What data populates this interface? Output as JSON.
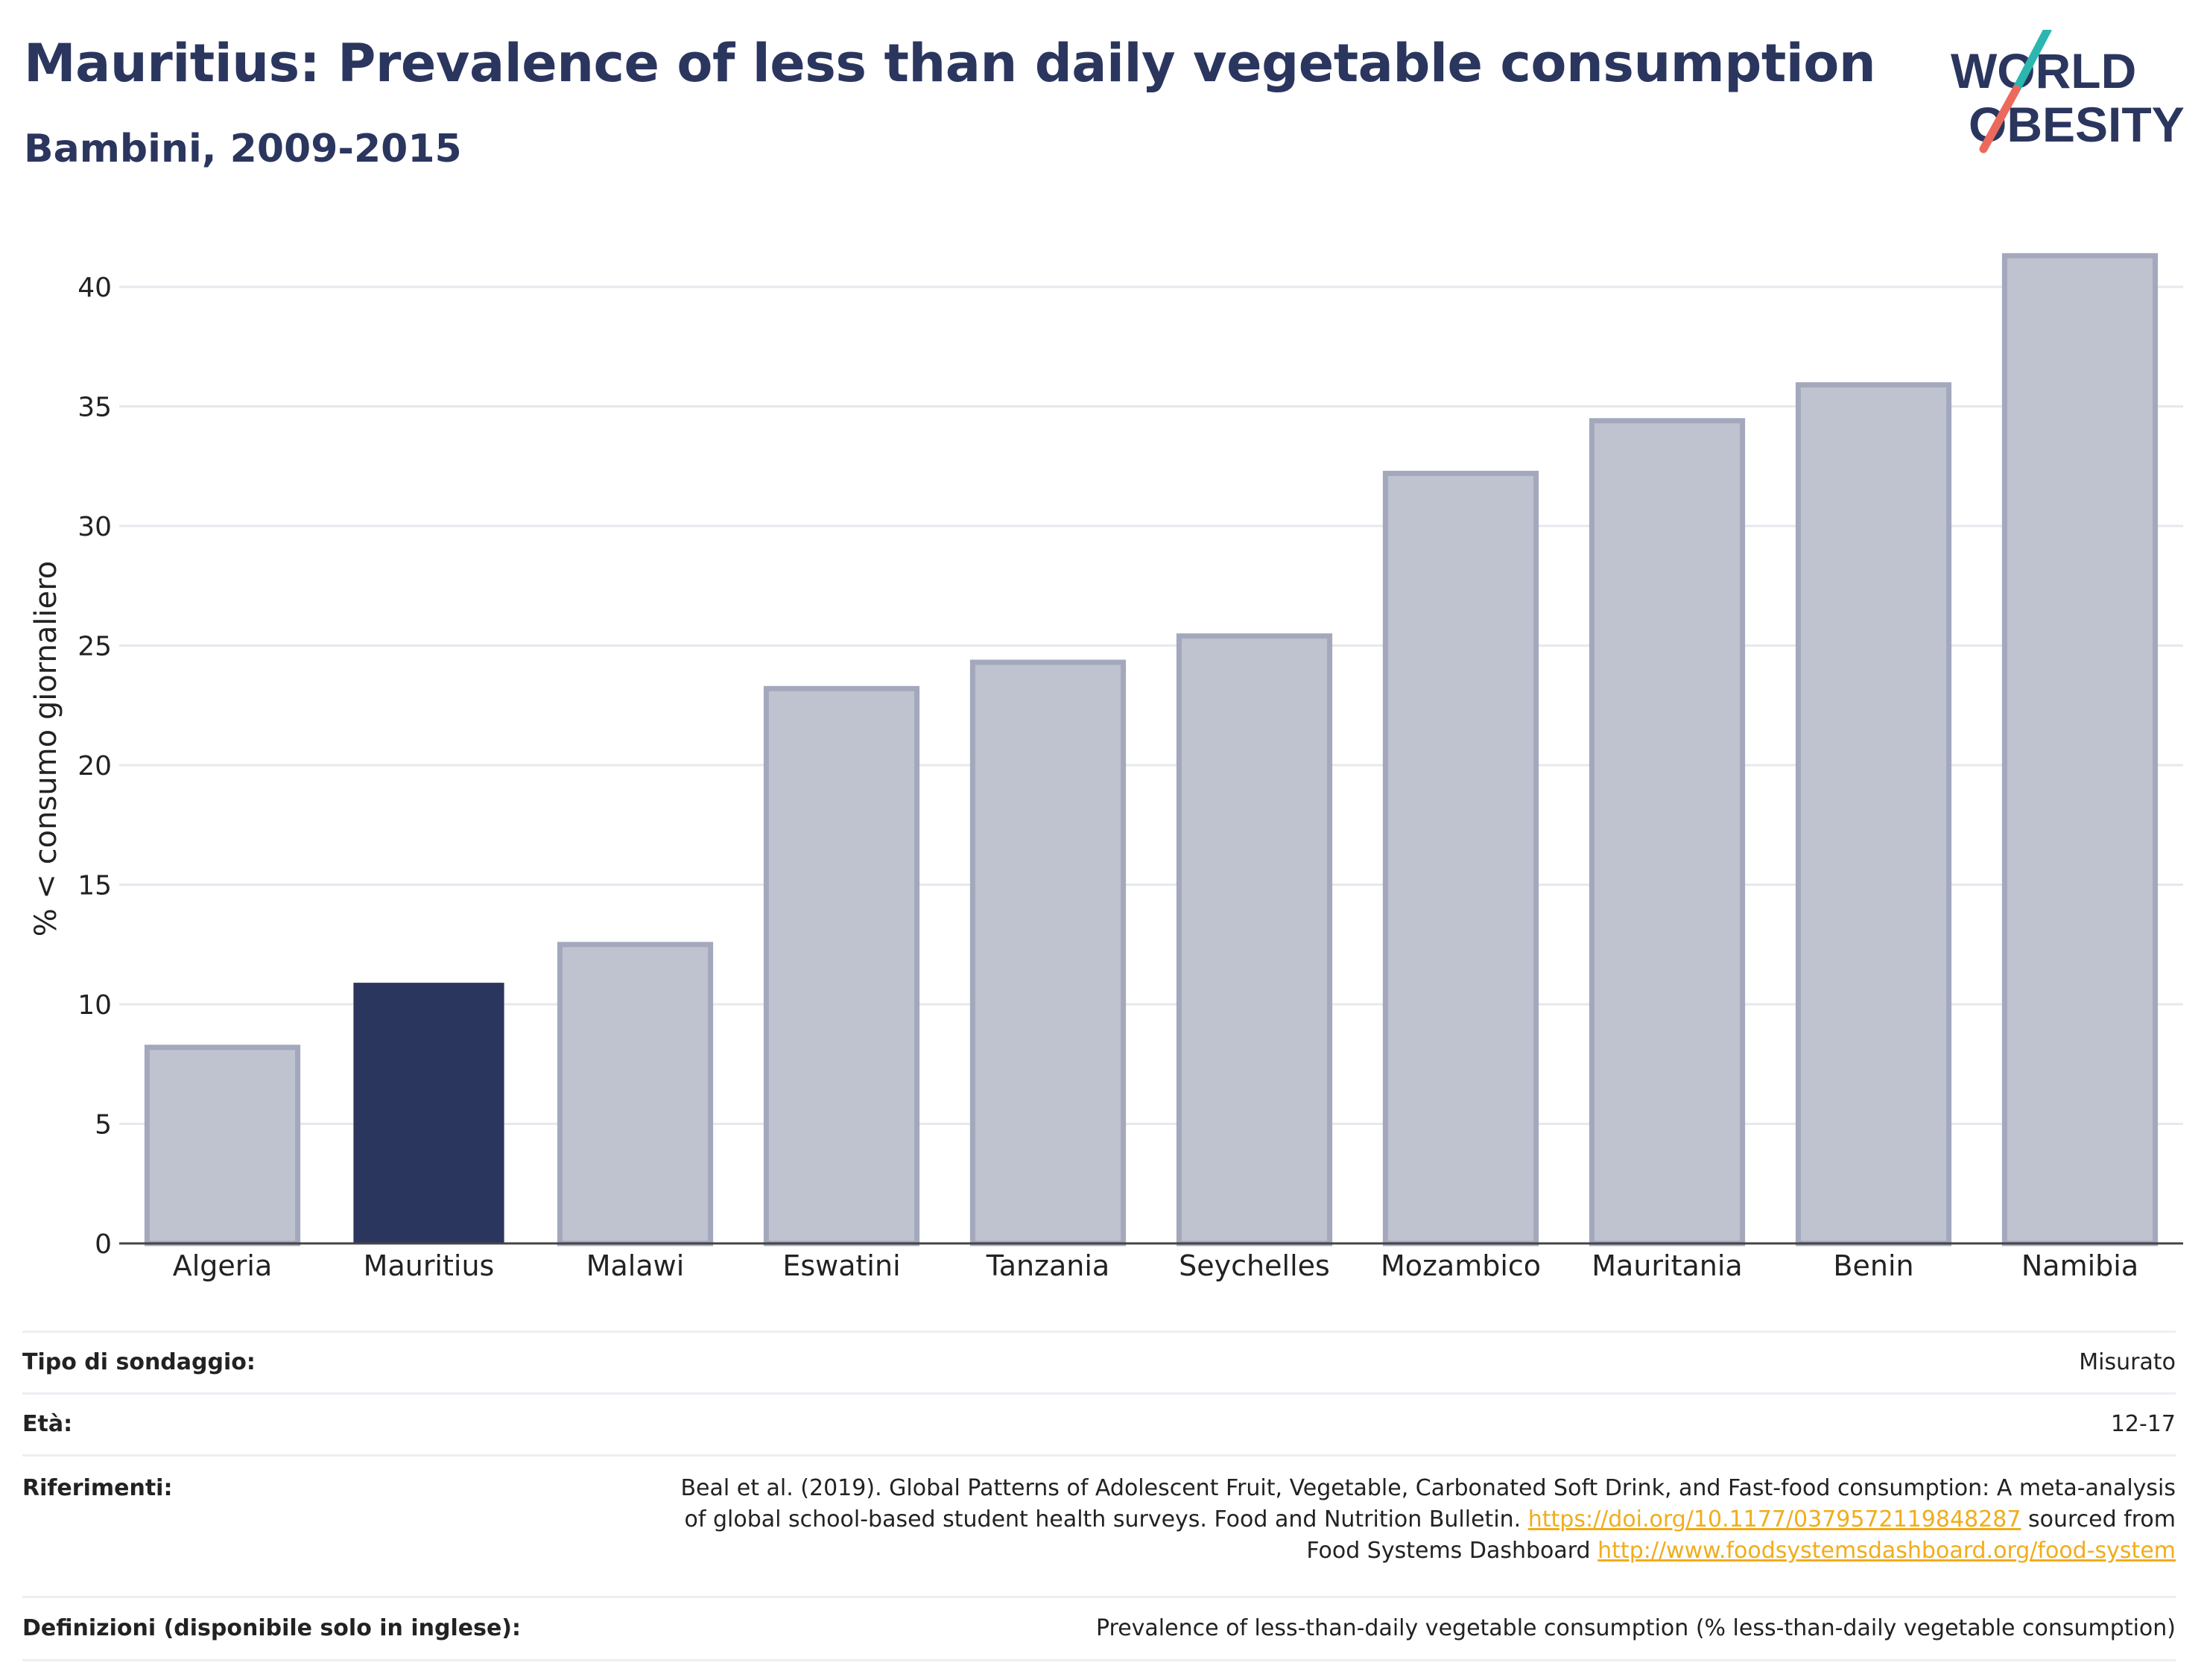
{
  "title": "Mauritius: Prevalence of less than daily vegetable consumption",
  "subtitle": "Bambini, 2009-2015",
  "logo": {
    "line1": "WORLD",
    "line2": "OBESITY"
  },
  "colors": {
    "highlight": "#2b365f",
    "other": "#bfc2cf",
    "other_stroke": "#a3a8bd",
    "accent_teal": "#2bb7b0",
    "accent_coral": "#ec6a5c",
    "link": "#f0ad1c"
  },
  "chart_data": {
    "type": "bar",
    "categories": [
      "Algeria",
      "Mauritius",
      "Malawi",
      "Eswatini",
      "Tanzania",
      "Seychelles",
      "Mozambico",
      "Mauritania",
      "Benin",
      "Namibia"
    ],
    "values": [
      8.2,
      10.9,
      12.5,
      23.2,
      24.3,
      25.4,
      32.2,
      34.4,
      35.9,
      41.3
    ],
    "highlight": "Mauritius",
    "ylabel": "% < consumo giornaliero",
    "xlabel": "",
    "ylim": [
      0,
      42
    ],
    "yticks": [
      0,
      5,
      10,
      15,
      20,
      25,
      30,
      35,
      40
    ],
    "grid": true
  },
  "meta": {
    "survey_type_label": "Tipo di sondaggio:",
    "survey_type_value": "Misurato",
    "age_label": "Età:",
    "age_value": "12-17",
    "references_label": "Riferimenti:",
    "references_text1": "Beal et al. (2019). Global Patterns of Adolescent Fruit, Vegetable, Carbonated Soft Drink, and Fast-food consumption: A meta-analysis",
    "references_text2": "of global school-based student health surveys. Food and Nutrition Bulletin.",
    "references_link1": "https://doi.org/10.1177/0379572119848287",
    "references_text3": "sourced from",
    "references_text4": "Food Systems Dashboard",
    "references_link2": "http://www.foodsystemsdashboard.org/food-system",
    "definitions_label": "Definizioni (disponibile solo in inglese):",
    "definitions_value": "Prevalence of less-than-daily vegetable consumption (% less-than-daily vegetable consumption)"
  }
}
